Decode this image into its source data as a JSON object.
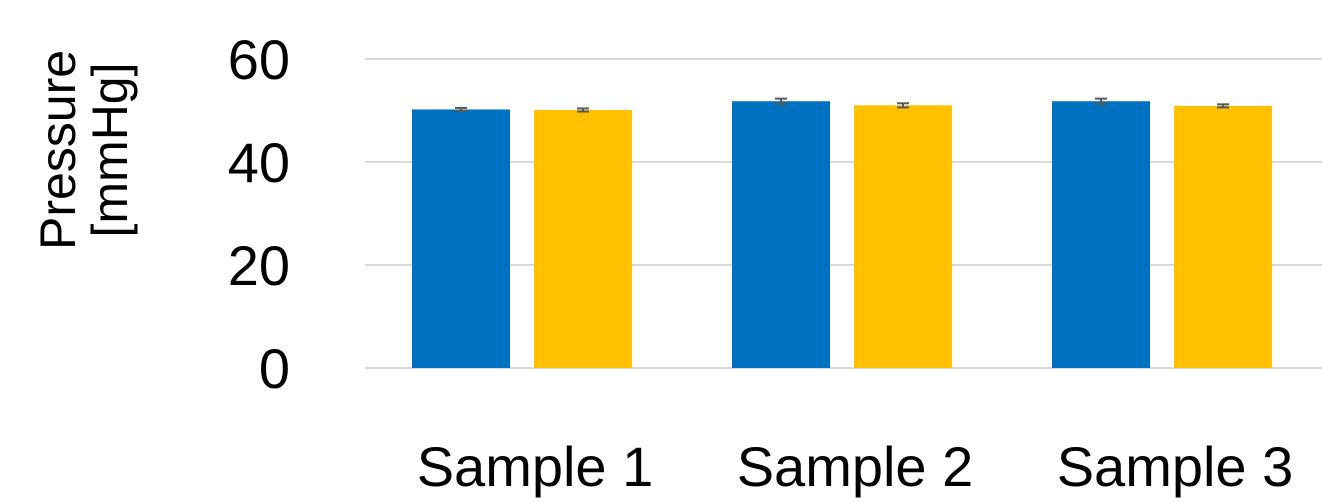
{
  "chart_data": {
    "type": "bar",
    "categories": [
      "Sample 1",
      "Sample 2",
      "Sample 3"
    ],
    "series": [
      {
        "values": [
          50.2,
          51.8,
          51.8
        ],
        "errors": [
          0.3,
          0.5,
          0.5
        ],
        "color": "#0070C0"
      },
      {
        "values": [
          50.1,
          51.0,
          50.9
        ],
        "errors": [
          0.3,
          0.4,
          0.3
        ],
        "color": "#FFC000"
      }
    ],
    "title": "",
    "xlabel": "",
    "ylabel_lines": [
      "Pressure",
      "[mmHg]"
    ],
    "ylim": [
      0,
      60
    ],
    "yticks": [
      0,
      20,
      40,
      60
    ],
    "ytick_labels": [
      "0",
      "20",
      "40",
      "60"
    ],
    "grid": true,
    "gridline_color": "#D9D9D9",
    "errorbar_color": "#595959"
  }
}
